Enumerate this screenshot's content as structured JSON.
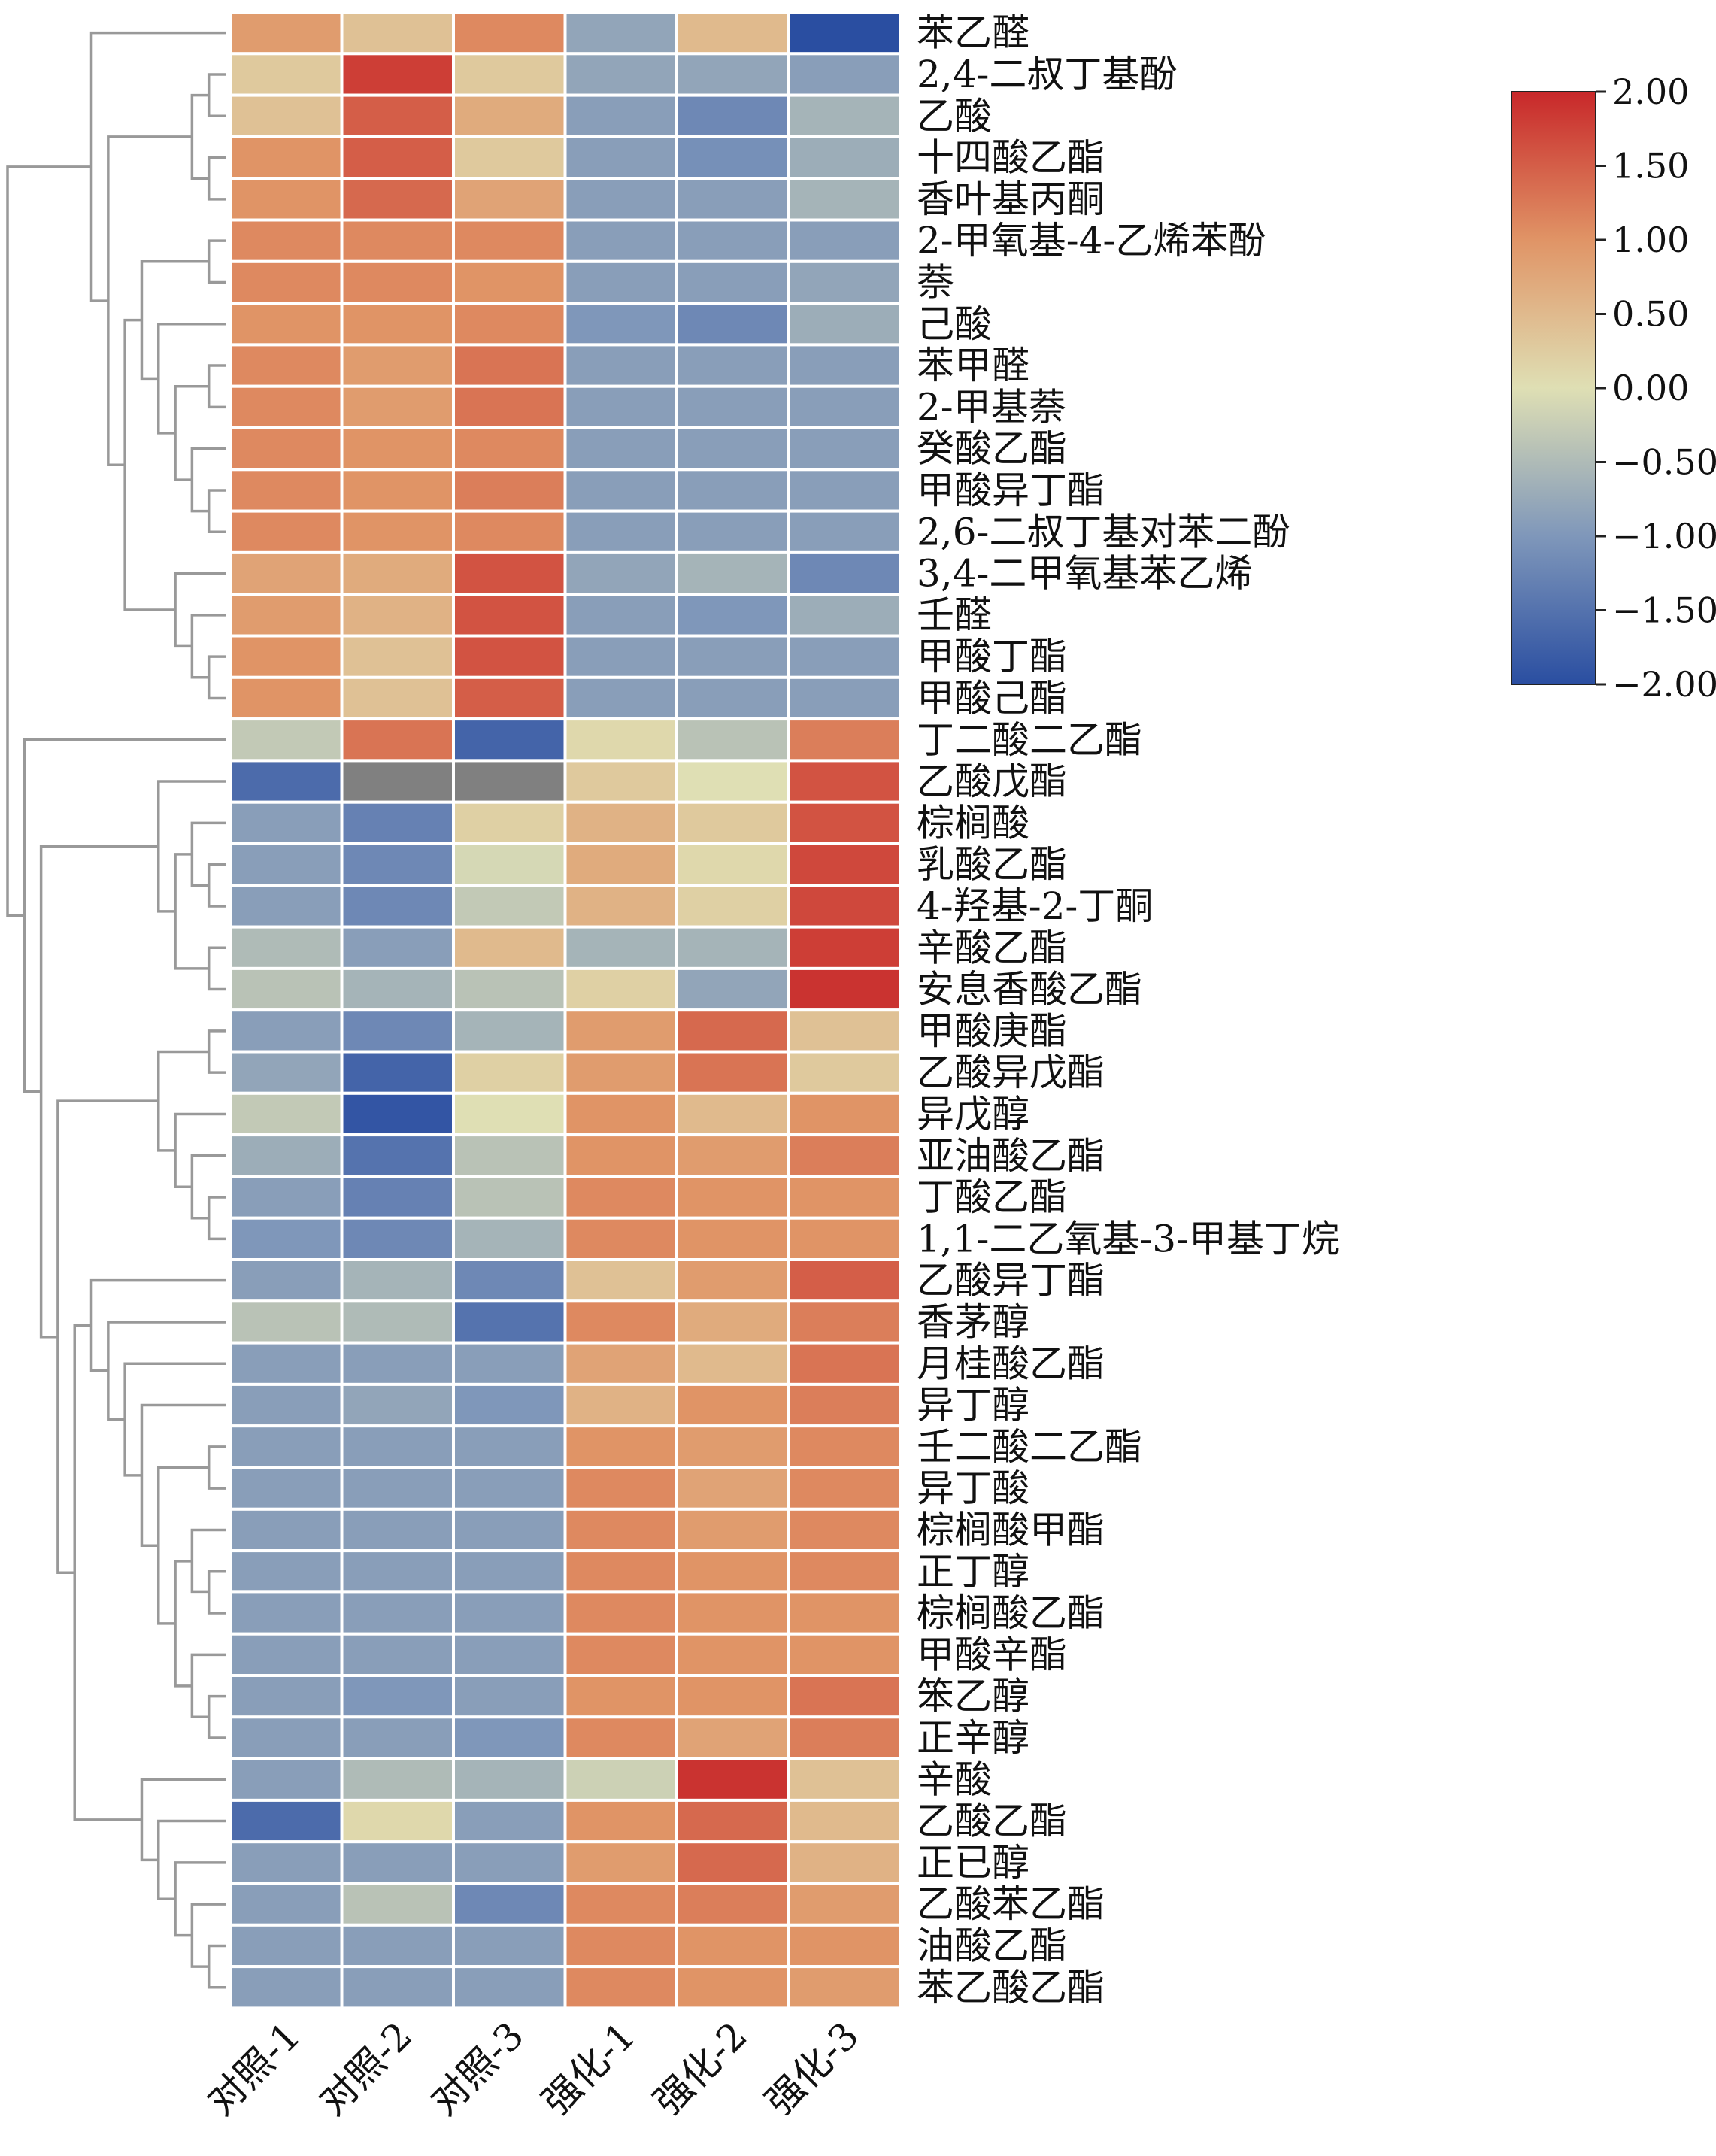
{
  "chart_data": {
    "type": "heatmap",
    "title": "",
    "columns": [
      "对照-1",
      "对照-2",
      "对照-3",
      "强化-1",
      "强化-2",
      "强化-3"
    ],
    "rows": [
      "苯乙醛",
      "2,4-二叔丁基酚",
      "乙酸",
      "十四酸乙酯",
      "香叶基丙酮",
      "2-甲氧基-4-乙烯苯酚",
      "萘",
      "己酸",
      "苯甲醛",
      "2-甲基萘",
      "癸酸乙酯",
      "甲酸异丁酯",
      "2,6-二叔丁基对苯二酚",
      "3,4-二甲氧基苯乙烯",
      "壬醛",
      "甲酸丁酯",
      "甲酸己酯",
      "丁二酸二乙酯",
      "乙酸戊酯",
      "棕榈酸",
      "乳酸乙酯",
      "4-羟基-2-丁酮",
      "辛酸乙酯",
      "安息香酸乙酯",
      "甲酸庚酯",
      "乙酸异戊酯",
      "异戊醇",
      "亚油酸乙酯",
      "丁酸乙酯",
      "1,1-二乙氧基-3-甲基丁烷",
      "乙酸异丁酯",
      "香茅醇",
      "月桂酸乙酯",
      "异丁醇",
      "壬二酸二乙酯",
      "异丁酸",
      "棕榈酸甲酯",
      "正丁醇",
      "棕榈酸乙酯",
      "甲酸辛酯",
      "笨乙醇",
      "正辛醇",
      "辛酸",
      "乙酸乙酯",
      "正已醇",
      "乙酸苯乙酯",
      "油酸乙酯",
      "苯乙酸乙酯"
    ],
    "values": [
      [
        0.9,
        0.4,
        1.1,
        -0.8,
        0.5,
        -2.0
      ],
      [
        0.3,
        1.8,
        0.3,
        -0.8,
        -0.8,
        -0.9
      ],
      [
        0.4,
        1.5,
        0.7,
        -0.9,
        -1.2,
        -0.6
      ],
      [
        1.0,
        1.5,
        0.3,
        -0.9,
        -1.1,
        -0.7
      ],
      [
        1.0,
        1.4,
        0.8,
        -0.9,
        -0.9,
        -0.6
      ],
      [
        1.1,
        1.1,
        1.1,
        -0.9,
        -0.9,
        -0.9
      ],
      [
        1.1,
        1.1,
        1.0,
        -0.9,
        -0.9,
        -0.8
      ],
      [
        1.0,
        1.0,
        1.1,
        -1.0,
        -1.2,
        -0.7
      ],
      [
        1.1,
        0.9,
        1.3,
        -0.9,
        -0.9,
        -0.9
      ],
      [
        1.1,
        0.9,
        1.3,
        -0.9,
        -0.9,
        -0.9
      ],
      [
        1.1,
        1.0,
        1.1,
        -0.9,
        -0.9,
        -0.9
      ],
      [
        1.1,
        1.0,
        1.2,
        -0.9,
        -0.9,
        -0.9
      ],
      [
        1.1,
        1.0,
        1.1,
        -0.9,
        -0.9,
        -0.9
      ],
      [
        0.8,
        0.7,
        1.6,
        -0.8,
        -0.6,
        -1.2
      ],
      [
        0.9,
        0.6,
        1.6,
        -0.9,
        -1.0,
        -0.7
      ],
      [
        1.0,
        0.4,
        1.6,
        -0.9,
        -0.9,
        -0.9
      ],
      [
        1.0,
        0.4,
        1.5,
        -0.9,
        -0.9,
        -0.9
      ],
      [
        -0.3,
        1.3,
        -1.7,
        0.1,
        -0.4,
        1.2
      ],
      [
        -1.6,
        null,
        null,
        0.3,
        0.0,
        1.6
      ],
      [
        -0.9,
        -1.3,
        0.2,
        0.6,
        0.3,
        1.6
      ],
      [
        -0.9,
        -1.2,
        -0.1,
        0.7,
        0.1,
        1.7
      ],
      [
        -0.9,
        -1.2,
        -0.3,
        0.6,
        0.2,
        1.7
      ],
      [
        -0.5,
        -0.9,
        0.5,
        -0.6,
        -0.6,
        1.8
      ],
      [
        -0.4,
        -0.6,
        -0.4,
        0.2,
        -0.8,
        1.9
      ],
      [
        -0.9,
        -1.2,
        -0.6,
        0.9,
        1.4,
        0.4
      ],
      [
        -0.8,
        -1.7,
        0.2,
        0.9,
        1.3,
        0.3
      ],
      [
        -0.3,
        -1.9,
        0.0,
        1.0,
        0.5,
        1.0
      ],
      [
        -0.7,
        -1.5,
        -0.4,
        1.0,
        0.9,
        1.2
      ],
      [
        -0.9,
        -1.3,
        -0.4,
        1.1,
        1.0,
        1.0
      ],
      [
        -1.0,
        -1.2,
        -0.6,
        1.1,
        1.0,
        1.0
      ],
      [
        -0.9,
        -0.6,
        -1.2,
        0.4,
        0.9,
        1.5
      ],
      [
        -0.4,
        -0.5,
        -1.5,
        1.1,
        0.7,
        1.2
      ],
      [
        -0.9,
        -0.9,
        -0.9,
        0.8,
        0.5,
        1.3
      ],
      [
        -0.9,
        -0.8,
        -1.0,
        0.6,
        1.0,
        1.2
      ],
      [
        -0.9,
        -0.9,
        -0.9,
        1.0,
        0.9,
        1.1
      ],
      [
        -0.9,
        -0.9,
        -0.9,
        1.1,
        0.8,
        1.1
      ],
      [
        -0.9,
        -0.9,
        -0.9,
        1.1,
        0.9,
        1.1
      ],
      [
        -0.9,
        -0.9,
        -0.9,
        1.1,
        1.0,
        1.1
      ],
      [
        -0.9,
        -0.9,
        -0.9,
        1.1,
        1.0,
        1.0
      ],
      [
        -0.9,
        -0.9,
        -0.9,
        1.1,
        1.0,
        1.0
      ],
      [
        -0.9,
        -1.0,
        -0.9,
        1.0,
        1.0,
        1.3
      ],
      [
        -0.9,
        -0.9,
        -1.0,
        1.1,
        0.8,
        1.2
      ],
      [
        -0.9,
        -0.5,
        -0.6,
        -0.2,
        1.9,
        0.4
      ],
      [
        -1.6,
        0.1,
        -0.9,
        1.0,
        1.4,
        0.5
      ],
      [
        -0.9,
        -0.9,
        -0.9,
        0.9,
        1.4,
        0.6
      ],
      [
        -0.9,
        -0.4,
        -1.2,
        1.1,
        1.2,
        0.9
      ],
      [
        -0.9,
        -0.9,
        -0.9,
        1.1,
        1.0,
        1.0
      ],
      [
        -0.9,
        -0.9,
        -0.9,
        1.1,
        1.0,
        0.9
      ]
    ],
    "colorbar": {
      "range": [
        -2.0,
        2.0
      ],
      "ticks": [
        "2.00",
        "1.50",
        "1.00",
        "0.50",
        "0.00",
        "−0.50",
        "−1.00",
        "−1.50",
        "−2.00"
      ],
      "colors": [
        "#2a4ea1",
        "#7f97ba",
        "#dfdfb4",
        "#e09466",
        "#c8282a"
      ]
    },
    "missing_color": "#808080",
    "grid_color": "#ffffff",
    "dendrogram_color": "#999999",
    "legend_placement": "top-right"
  }
}
